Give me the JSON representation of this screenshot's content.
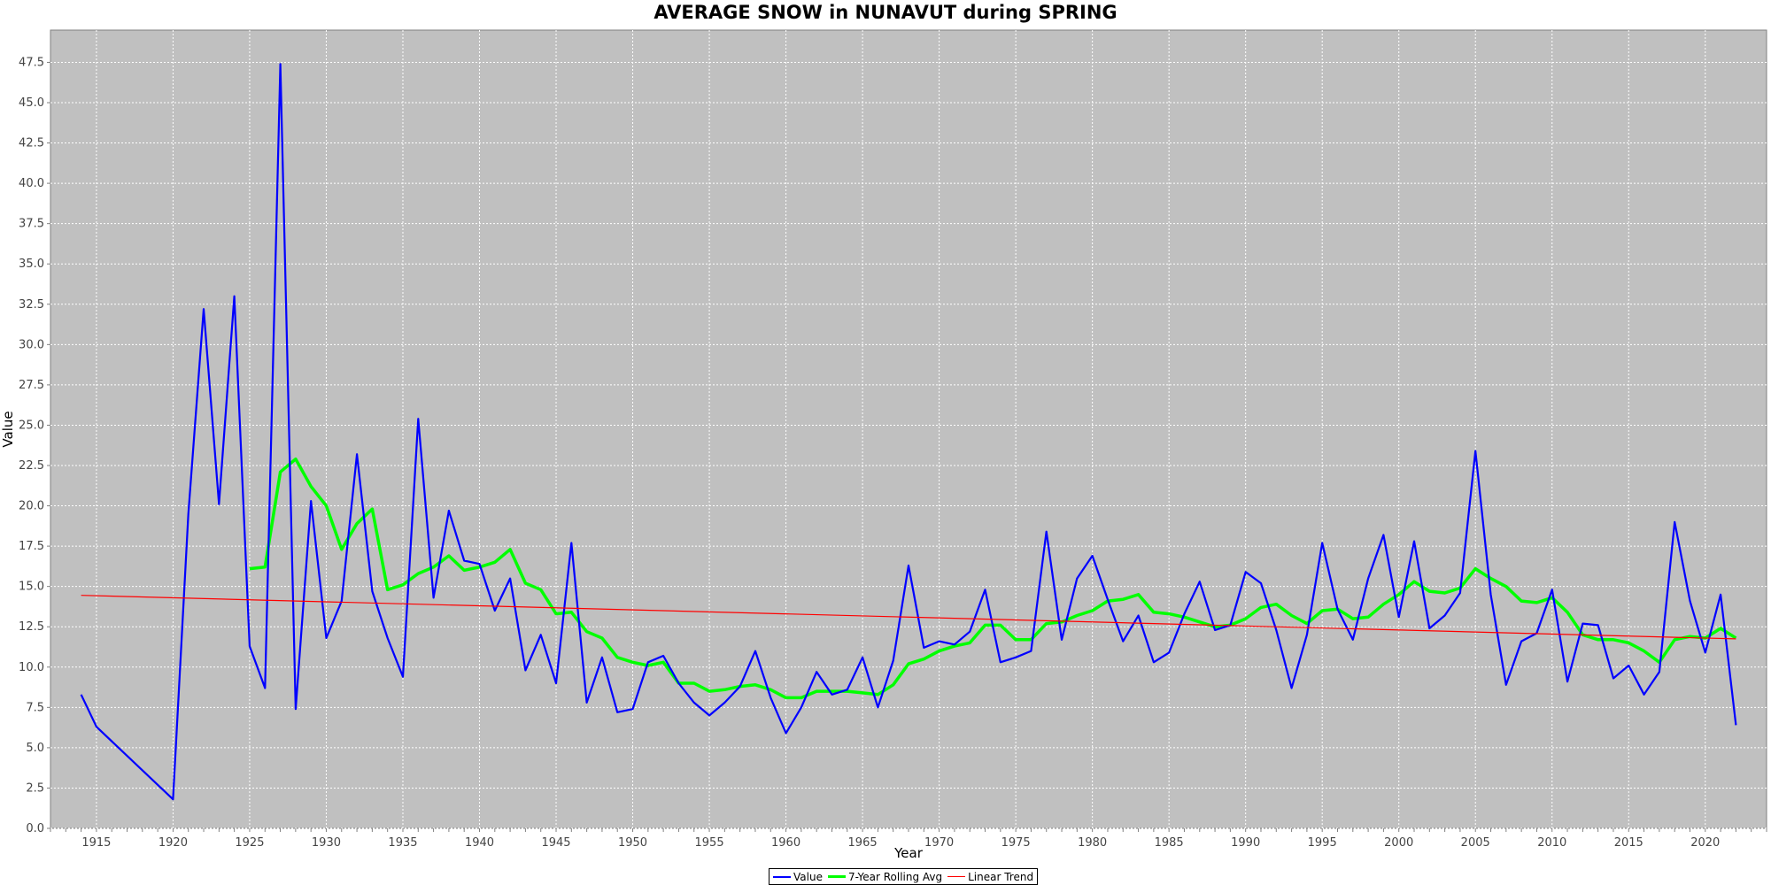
{
  "chart_data": {
    "type": "line",
    "title": "AVERAGE SNOW in NUNAVUT during SPRING",
    "xlabel": "Year",
    "ylabel": "Value",
    "xlim": [
      1912,
      2024
    ],
    "ylim": [
      0,
      49.5
    ],
    "x_ticks": [
      1915,
      1920,
      1925,
      1930,
      1935,
      1940,
      1945,
      1950,
      1955,
      1960,
      1965,
      1970,
      1975,
      1980,
      1985,
      1990,
      1995,
      2000,
      2005,
      2010,
      2015,
      2020
    ],
    "y_ticks": [
      0.0,
      2.5,
      5.0,
      7.5,
      10.0,
      12.5,
      15.0,
      17.5,
      20.0,
      22.5,
      25.0,
      27.5,
      30.0,
      32.5,
      35.0,
      37.5,
      40.0,
      42.5,
      45.0,
      47.5
    ],
    "grid": true,
    "legend_position": "bottom",
    "series": [
      {
        "name": "Value",
        "color": "#0000ff",
        "x": [
          1914,
          1915,
          1920,
          1921,
          1922,
          1923,
          1924,
          1925,
          1926,
          1927,
          1928,
          1929,
          1930,
          1931,
          1932,
          1933,
          1934,
          1935,
          1936,
          1937,
          1938,
          1939,
          1940,
          1941,
          1942,
          1943,
          1944,
          1945,
          1946,
          1947,
          1948,
          1949,
          1950,
          1951,
          1952,
          1953,
          1954,
          1955,
          1956,
          1957,
          1958,
          1959,
          1960,
          1961,
          1962,
          1963,
          1964,
          1965,
          1966,
          1967,
          1968,
          1969,
          1970,
          1971,
          1972,
          1973,
          1974,
          1975,
          1976,
          1977,
          1978,
          1979,
          1980,
          1981,
          1982,
          1983,
          1984,
          1985,
          1986,
          1987,
          1988,
          1989,
          1990,
          1991,
          1992,
          1993,
          1994,
          1995,
          1996,
          1997,
          1998,
          1999,
          2000,
          2001,
          2002,
          2003,
          2004,
          2005,
          2006,
          2007,
          2008,
          2009,
          2010,
          2011,
          2012,
          2013,
          2014,
          2015,
          2016,
          2017,
          2018,
          2019,
          2020,
          2021,
          2022
        ],
        "values": [
          8.3,
          6.3,
          1.8,
          19.5,
          32.2,
          20.1,
          33.0,
          11.3,
          8.7,
          47.4,
          7.4,
          20.3,
          11.8,
          14.1,
          23.2,
          14.7,
          11.8,
          9.4,
          25.4,
          14.3,
          19.7,
          16.6,
          16.4,
          13.5,
          15.5,
          9.8,
          12.0,
          9.0,
          17.7,
          7.8,
          10.6,
          7.2,
          7.4,
          10.3,
          10.7,
          9.0,
          7.8,
          7.0,
          7.8,
          8.8,
          11.0,
          8.1,
          5.9,
          7.5,
          9.7,
          8.3,
          8.6,
          10.6,
          7.5,
          10.4,
          16.3,
          11.2,
          11.6,
          11.4,
          12.2,
          14.8,
          10.3,
          10.6,
          11.0,
          18.4,
          11.7,
          15.5,
          16.9,
          14.2,
          11.6,
          13.2,
          10.3,
          10.9,
          13.3,
          15.3,
          12.3,
          12.6,
          15.9,
          15.2,
          12.3,
          8.7,
          12.0,
          17.7,
          13.6,
          11.7,
          15.5,
          18.2,
          13.1,
          17.8,
          12.4,
          13.2,
          14.6,
          23.4,
          14.5,
          8.9,
          11.6,
          12.1,
          14.8,
          9.1,
          12.7,
          12.6,
          9.3,
          10.1,
          8.3,
          9.7,
          19.0,
          14.1,
          10.9,
          14.5,
          6.4
        ]
      },
      {
        "name": "7-Year Rolling Avg",
        "color": "#00ff00",
        "x": [
          1925,
          1926,
          1927,
          1928,
          1929,
          1930,
          1931,
          1932,
          1933,
          1934,
          1935,
          1936,
          1937,
          1938,
          1939,
          1940,
          1941,
          1942,
          1943,
          1944,
          1945,
          1946,
          1947,
          1948,
          1949,
          1950,
          1951,
          1952,
          1953,
          1954,
          1955,
          1956,
          1957,
          1958,
          1959,
          1960,
          1961,
          1962,
          1963,
          1964,
          1965,
          1966,
          1967,
          1968,
          1969,
          1970,
          1971,
          1972,
          1973,
          1974,
          1975,
          1976,
          1977,
          1978,
          1979,
          1980,
          1981,
          1982,
          1983,
          1984,
          1985,
          1986,
          1987,
          1988,
          1989,
          1990,
          1991,
          1992,
          1993,
          1994,
          1995,
          1996,
          1997,
          1998,
          1999,
          2000,
          2001,
          2002,
          2003,
          2004,
          2005,
          2006,
          2007,
          2008,
          2009,
          2010,
          2011,
          2012,
          2013,
          2014,
          2015,
          2016,
          2017,
          2018,
          2019,
          2020,
          2021,
          2022
        ],
        "values": [
          16.1,
          16.2,
          22.1,
          22.9,
          21.2,
          20.0,
          17.3,
          18.9,
          19.8,
          14.8,
          15.1,
          15.8,
          16.2,
          16.9,
          16.0,
          16.2,
          16.5,
          17.3,
          15.2,
          14.8,
          13.3,
          13.4,
          12.2,
          11.8,
          10.6,
          10.3,
          10.1,
          10.3,
          9.0,
          9.0,
          8.5,
          8.6,
          8.8,
          8.9,
          8.6,
          8.1,
          8.1,
          8.5,
          8.5,
          8.5,
          8.4,
          8.3,
          8.9,
          10.2,
          10.5,
          11.0,
          11.3,
          11.5,
          12.6,
          12.6,
          11.7,
          11.7,
          12.7,
          12.8,
          13.2,
          13.5,
          14.1,
          14.2,
          14.5,
          13.4,
          13.3,
          13.1,
          12.8,
          12.5,
          12.6,
          13.0,
          13.7,
          13.9,
          13.2,
          12.7,
          13.5,
          13.6,
          13.0,
          13.1,
          13.9,
          14.5,
          15.3,
          14.7,
          14.6,
          14.9,
          16.1,
          15.5,
          15.0,
          14.1,
          14.0,
          14.3,
          13.4,
          12.0,
          11.7,
          11.7,
          11.5,
          11.0,
          10.3,
          11.7,
          11.9,
          11.8,
          12.4,
          11.8
        ]
      },
      {
        "name": "Linear Trend",
        "color": "#ff0000",
        "x": [
          1914,
          2022
        ],
        "values": [
          14.45,
          11.75
        ]
      }
    ]
  }
}
